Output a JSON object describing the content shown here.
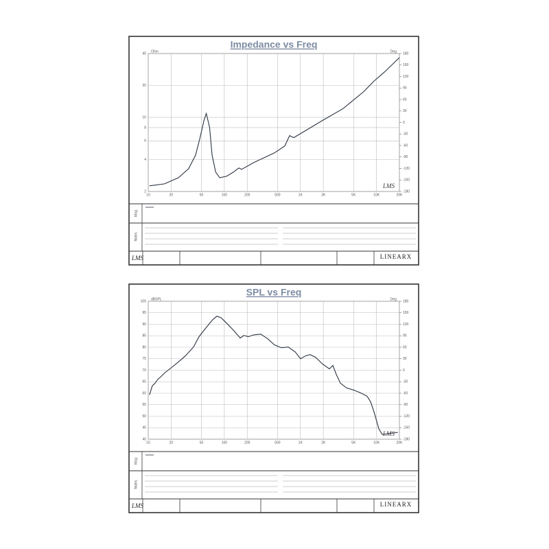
{
  "chart_data": [
    {
      "type": "line",
      "title": "Impedance vs Freq",
      "left_unit": "Ohm",
      "right_unit": "Deg",
      "mag_label": "Mag",
      "notes_label": "Notes",
      "logo": "LMS",
      "brand": "LINEARX",
      "xlog": true,
      "ylog": true,
      "xlim": [
        10,
        20000
      ],
      "ylim": [
        2,
        40
      ],
      "y2lim": [
        -180,
        180
      ],
      "xticks": [
        10,
        20,
        50,
        100,
        200,
        500,
        {
          "value": 1000,
          "label": "1K"
        },
        {
          "value": 2000,
          "label": "2K"
        },
        {
          "value": 5000,
          "label": "5K"
        },
        {
          "value": 10000,
          "label": "10K"
        },
        {
          "value": 20000,
          "label": "20K"
        }
      ],
      "yticks": [
        2,
        4,
        6,
        8,
        10,
        20,
        40
      ],
      "y2ticks": [
        -180,
        -150,
        -120,
        -90,
        -60,
        -30,
        0,
        30,
        60,
        90,
        120,
        150,
        180
      ],
      "grid": true,
      "x": [
        10.4,
        16.4,
        25,
        34,
        42,
        48,
        54,
        58,
        64,
        69,
        77,
        87,
        107,
        131,
        155,
        169,
        245,
        456,
        624,
        721,
        817,
        1047,
        1954,
        3640,
        6790,
        9270,
        12680,
        20000
      ],
      "series": [
        {
          "color": "#2a3340",
          "values": [
            2.26,
            2.36,
            2.7,
            3.28,
            4.42,
            6.43,
            9.36,
            10.87,
            8.06,
            4.42,
            3.04,
            2.7,
            2.78,
            3.04,
            3.33,
            3.23,
            3.75,
            4.62,
            5.37,
            6.73,
            6.43,
            7.15,
            9.36,
            12.1,
            17.5,
            22.0,
            26.7,
            36.6
          ]
        }
      ]
    },
    {
      "type": "line",
      "title": "SPL vs Freq",
      "left_unit": "dBSPL",
      "right_unit": "Deg",
      "mag_label": "Mag",
      "notes_label": "Notes",
      "logo": "LMS",
      "brand": "LINEARX",
      "xlog": true,
      "ylog": false,
      "xlim": [
        10,
        20000
      ],
      "ylim": [
        40,
        100
      ],
      "y2lim": [
        -180,
        180
      ],
      "xticks": [
        10,
        20,
        50,
        100,
        200,
        500,
        {
          "value": 1000,
          "label": "1K"
        },
        {
          "value": 2000,
          "label": "2K"
        },
        {
          "value": 5000,
          "label": "5K"
        },
        {
          "value": 10000,
          "label": "10K"
        },
        {
          "value": 20000,
          "label": "20K"
        }
      ],
      "yticks": [
        40,
        45,
        50,
        55,
        60,
        65,
        70,
        75,
        80,
        85,
        90,
        95,
        100
      ],
      "y2ticks": [
        -180,
        -150,
        -120,
        -90,
        -60,
        -30,
        0,
        30,
        60,
        90,
        120,
        150,
        180
      ],
      "grid": true,
      "x": [
        10.4,
        11.3,
        12.3,
        13.4,
        14.8,
        16.4,
        20.3,
        24.9,
        30.7,
        39.4,
        46.5,
        57.2,
        70.4,
        79.8,
        90.3,
        107,
        131,
        162,
        180,
        207,
        245,
        301,
        371,
        457,
        562,
        692,
        851,
        1005,
        1161,
        1343,
        1588,
        1954,
        2405,
        2668,
        2960,
        3352,
        4038,
        4977,
        6124,
        7536,
        8356,
        9268,
        10720,
        11890,
        14060,
        19190
      ],
      "series": [
        {
          "color": "#2a3340",
          "values": [
            59.3,
            63.2,
            64.4,
            66.1,
            67.3,
            68.8,
            71.2,
            73.6,
            76.2,
            80.1,
            84.6,
            88.4,
            92.0,
            93.5,
            92.9,
            90.5,
            87.5,
            84.0,
            85.1,
            84.6,
            85.4,
            85.7,
            83.7,
            81.0,
            79.8,
            80.1,
            78.0,
            75.0,
            76.2,
            76.8,
            75.6,
            72.7,
            70.6,
            72.1,
            68.2,
            64.4,
            62.3,
            61.4,
            60.2,
            58.7,
            56.3,
            51.9,
            44.5,
            42.1,
            42.4,
            43.0
          ]
        }
      ]
    }
  ]
}
